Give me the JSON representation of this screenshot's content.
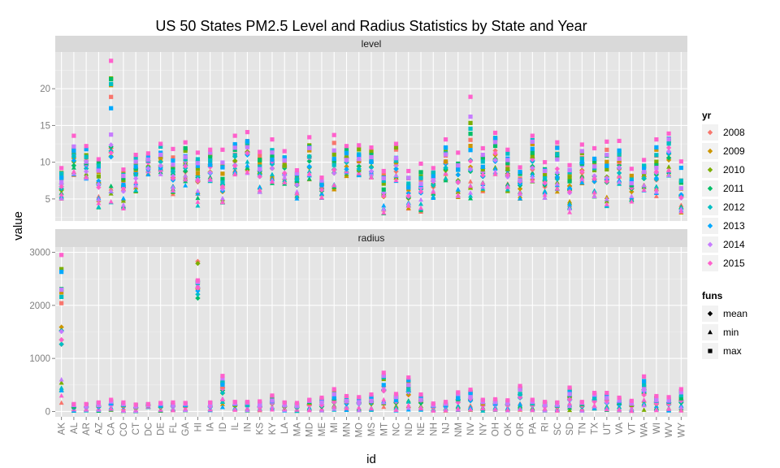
{
  "chart_data": {
    "type": "scatter",
    "title": "US 50 States PM2.5 Level and Radius Statistics by State and Year",
    "xlabel": "id",
    "ylabel": "value",
    "grid": true,
    "legend_position": "right",
    "categories": [
      "AK",
      "AL",
      "AR",
      "AZ",
      "CA",
      "CO",
      "CT",
      "DC",
      "DE",
      "FL",
      "GA",
      "HI",
      "IA",
      "ID",
      "IL",
      "IN",
      "KS",
      "KY",
      "LA",
      "MA",
      "MD",
      "ME",
      "MI",
      "MN",
      "MO",
      "MS",
      "MT",
      "NC",
      "ND",
      "NE",
      "NH",
      "NJ",
      "NM",
      "NV",
      "NY",
      "OH",
      "OK",
      "OR",
      "PA",
      "RI",
      "SC",
      "SD",
      "TN",
      "TX",
      "UT",
      "VA",
      "VT",
      "WA",
      "WI",
      "WV",
      "WY"
    ],
    "panels": [
      {
        "name": "level",
        "ylim": [
          2,
          25
        ],
        "yticks": [
          5,
          10,
          15,
          20
        ],
        "max": [
          9.2,
          13.6,
          12.2,
          10.4,
          23.8,
          9.0,
          11.0,
          11.2,
          12.5,
          11.8,
          12.7,
          11.3,
          11.7,
          11.7,
          13.6,
          14.1,
          11.4,
          13.1,
          11.5,
          8.9,
          13.4,
          7.9,
          13.7,
          12.2,
          12.3,
          12.0,
          8.8,
          12.5,
          8.8,
          9.8,
          9.2,
          13.1,
          11.3,
          18.9,
          11.9,
          14.0,
          11.7,
          9.3,
          13.6,
          10.0,
          12.7,
          9.6,
          12.4,
          11.9,
          12.8,
          12.9,
          9.1,
          10.3,
          13.1,
          13.9,
          10.1
        ],
        "mean": [
          6.5,
          10.4,
          9.4,
          7.0,
          11.5,
          6.5,
          8.4,
          9.6,
          10.1,
          8.1,
          9.5,
          7.9,
          9.1,
          6.4,
          10.2,
          11.5,
          8.3,
          9.8,
          8.8,
          7.2,
          10.0,
          6.5,
          8.5,
          9.9,
          9.6,
          9.5,
          5.8,
          9.3,
          5.5,
          6.3,
          7.2,
          9.4,
          7.7,
          9.5,
          8.4,
          10.8,
          8.5,
          7.0,
          9.7,
          7.3,
          8.4,
          6.4,
          9.3,
          7.8,
          7.8,
          9.3,
          6.4,
          8.0,
          8.2,
          11.0,
          5.6
        ],
        "min": [
          5.0,
          8.0,
          7.5,
          3.6,
          4.4,
          3.6,
          6.0,
          8.2,
          8.2,
          5.5,
          6.8,
          4.0,
          7.3,
          3.8,
          8.2,
          8.5,
          5.6,
          7.0,
          7.0,
          5.0,
          7.5,
          5.0,
          6.0,
          8.0,
          8.0,
          7.8,
          3.0,
          7.4,
          3.6,
          3.2,
          5.0,
          7.5,
          5.0,
          4.8,
          6.0,
          8.0,
          6.0,
          5.0,
          7.3,
          5.0,
          5.9,
          3.0,
          7.0,
          5.0,
          3.6,
          6.9,
          4.5,
          5.9,
          5.0,
          8.0,
          2.8
        ]
      },
      {
        "name": "radius",
        "ylim": [
          -100,
          3100
        ],
        "yticks": [
          0,
          1000,
          2000,
          3000
        ],
        "max": [
          2950,
          140,
          140,
          170,
          220,
          170,
          130,
          140,
          160,
          170,
          160,
          2470,
          170,
          670,
          180,
          180,
          190,
          300,
          170,
          160,
          220,
          260,
          420,
          290,
          270,
          320,
          730,
          330,
          640,
          320,
          150,
          180,
          360,
          410,
          220,
          230,
          210,
          480,
          220,
          180,
          170,
          450,
          180,
          350,
          350,
          260,
          200,
          660,
          290,
          270,
          420
        ],
        "mean": [
          1500,
          80,
          85,
          100,
          130,
          100,
          70,
          110,
          90,
          100,
          95,
          2400,
          95,
          400,
          110,
          110,
          90,
          170,
          100,
          80,
          130,
          110,
          200,
          170,
          160,
          170,
          400,
          190,
          360,
          190,
          80,
          100,
          200,
          230,
          130,
          130,
          120,
          280,
          130,
          100,
          95,
          260,
          110,
          200,
          190,
          150,
          100,
          380,
          170,
          150,
          200
        ],
        "min": [
          150,
          10,
          10,
          10,
          10,
          5,
          5,
          80,
          10,
          15,
          15,
          2350,
          15,
          50,
          15,
          15,
          10,
          20,
          15,
          5,
          15,
          5,
          15,
          15,
          15,
          15,
          20,
          15,
          20,
          10,
          10,
          10,
          10,
          15,
          10,
          15,
          10,
          20,
          15,
          10,
          10,
          20,
          10,
          15,
          15,
          15,
          5,
          20,
          15,
          10,
          10
        ]
      }
    ],
    "legend": {
      "color_title": "yr",
      "years": [
        "2008",
        "2009",
        "2010",
        "2011",
        "2012",
        "2013",
        "2014",
        "2015"
      ],
      "colors": [
        "#F8766D",
        "#CD9600",
        "#7CAE00",
        "#00BE67",
        "#00BFC4",
        "#00A9FF",
        "#C77CFF",
        "#FF61CC"
      ],
      "shape_title": "funs",
      "shapes": [
        "mean",
        "min",
        "max"
      ]
    }
  }
}
